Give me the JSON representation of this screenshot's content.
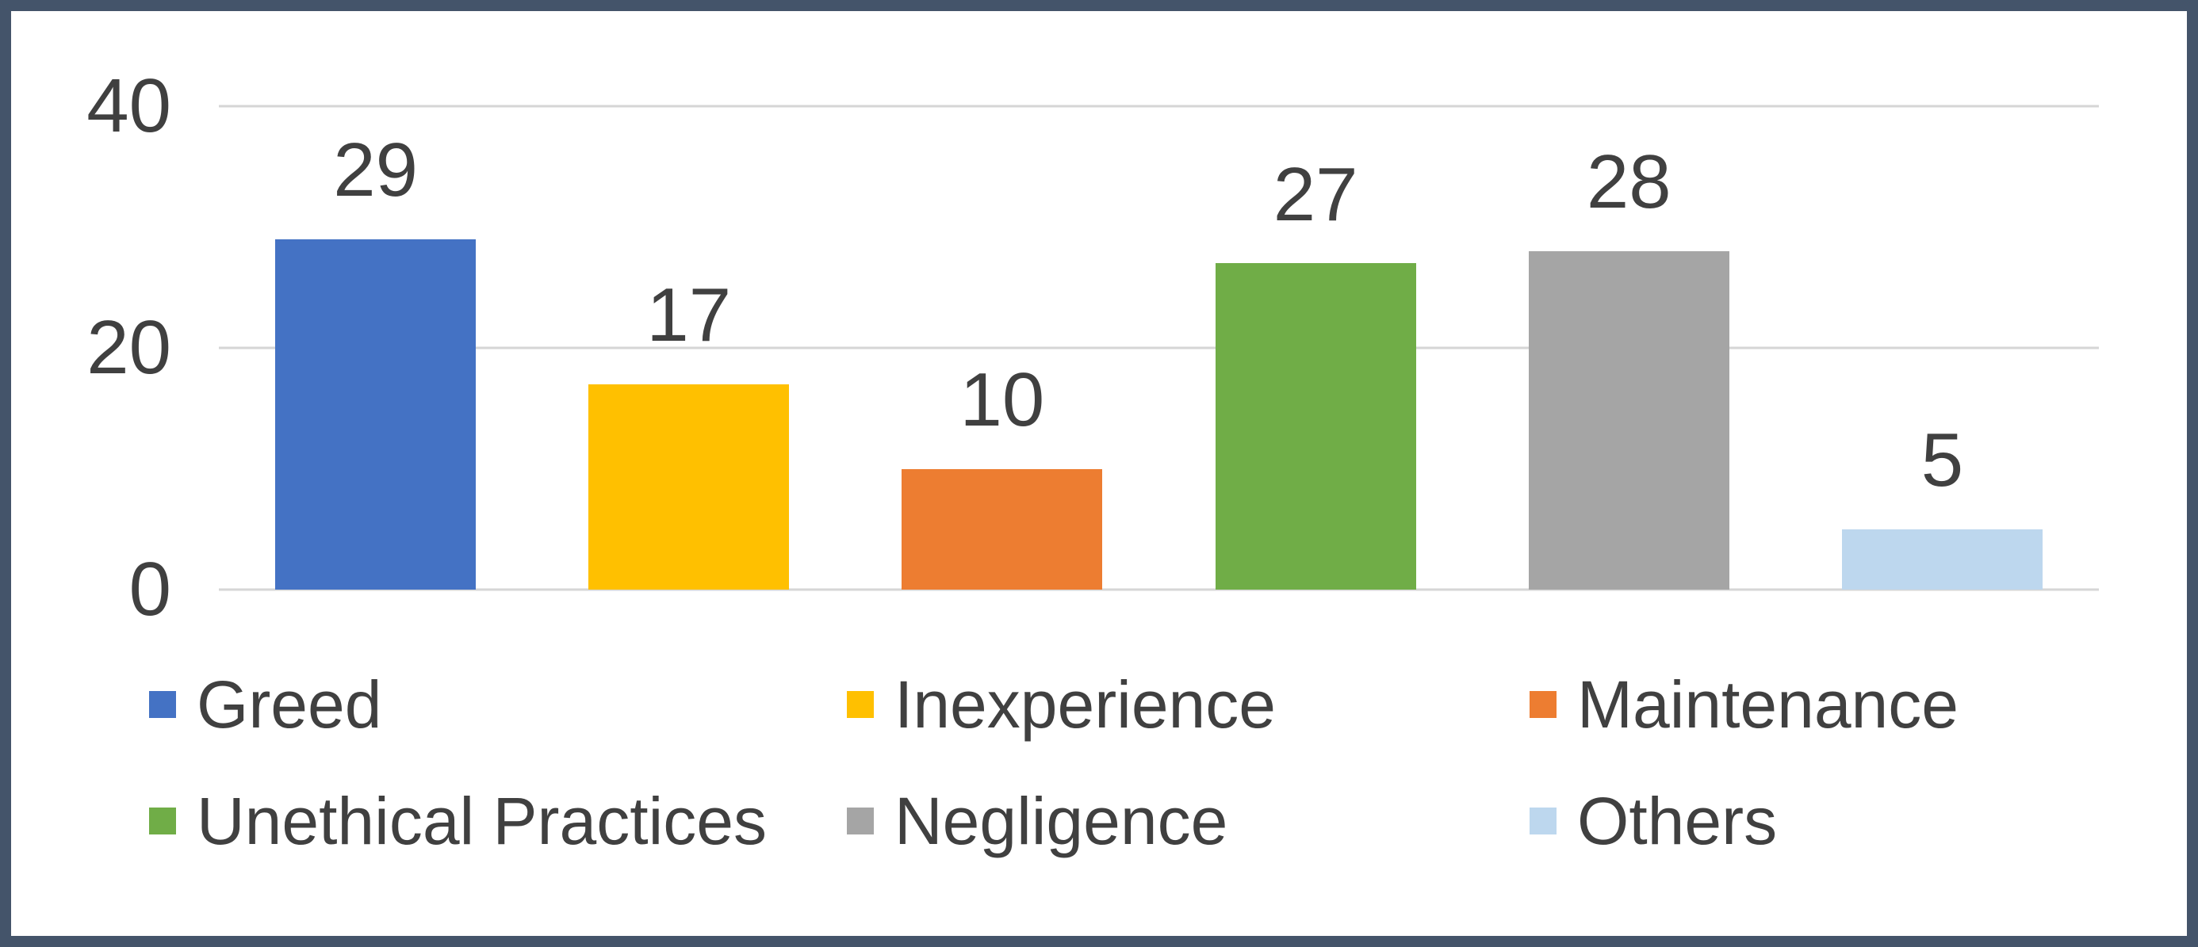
{
  "chart_data": {
    "type": "bar",
    "categories": [
      "Greed",
      "Inexperience",
      "Maintenance",
      "Unethical Practices",
      "Negligence",
      "Others"
    ],
    "values": [
      29,
      17,
      10,
      27,
      28,
      5
    ],
    "data_labels": [
      "29",
      "17",
      "10",
      "27",
      "28",
      "5"
    ],
    "colors": [
      "#4472C4",
      "#FFC000",
      "#ED7D31",
      "#70AD47",
      "#A5A5A5",
      "#BDD7EE"
    ],
    "title": "",
    "xlabel": "",
    "ylabel": "",
    "ylim": [
      0,
      40
    ],
    "yticks": [
      0,
      20,
      40
    ],
    "grid": true,
    "legend_position": "bottom",
    "legend_entries": [
      "Greed",
      "Inexperience",
      "Maintenance",
      "Unethical Practices",
      "Negligence",
      "Others"
    ]
  },
  "styles": {
    "frame_border_color": "#44546A",
    "gridline_color": "#D6D6D6",
    "tick_label_color": "#404040",
    "data_label_color": "#404040",
    "legend_text_color": "#404040",
    "background": "#FFFFFF"
  }
}
